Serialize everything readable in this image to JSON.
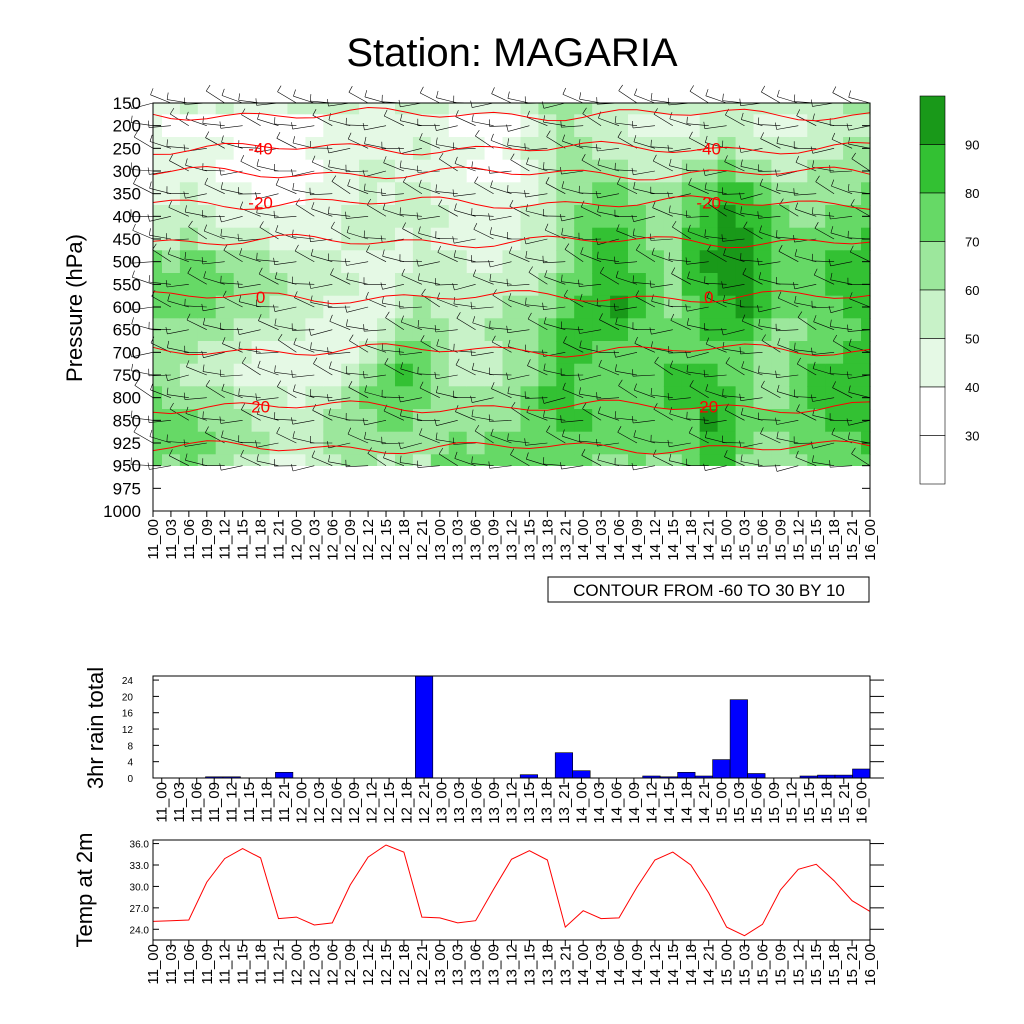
{
  "title": "Station: MAGARIA",
  "time_labels": [
    "11_00",
    "11_03",
    "11_06",
    "11_09",
    "11_12",
    "11_15",
    "11_18",
    "11_21",
    "12_00",
    "12_03",
    "12_06",
    "12_09",
    "12_12",
    "12_15",
    "12_18",
    "12_21",
    "13_00",
    "13_03",
    "13_06",
    "13_09",
    "13_12",
    "13_15",
    "13_18",
    "13_21",
    "14_00",
    "14_03",
    "14_06",
    "14_09",
    "14_12",
    "14_15",
    "14_18",
    "14_21",
    "15_00",
    "15_03",
    "15_06",
    "15_09",
    "15_12",
    "15_15",
    "15_18",
    "15_21",
    "16_00"
  ],
  "colors": {
    "rain_bar": "#0000ff",
    "temp_line": "#ff0000",
    "temp_contour": "#ff0000",
    "rh_levels": [
      "#ffffff",
      "#e5f9e5",
      "#c8f2c8",
      "#9ce79c",
      "#66d966",
      "#33c133",
      "#199919"
    ]
  },
  "chart_data": [
    {
      "type": "heatmap",
      "ylabel": "Pressure (hPa)",
      "y_ticks": [
        150,
        200,
        250,
        300,
        350,
        400,
        450,
        500,
        550,
        600,
        650,
        700,
        750,
        800,
        850,
        925,
        950,
        975,
        1000
      ],
      "y_reversed": true,
      "x_ticks_ref": "time_labels",
      "variable_shaded": "relative humidity",
      "colorbar_labels": [
        "30",
        "40",
        "50",
        "60",
        "70",
        "80",
        "90"
      ],
      "colorbar_bins": [
        20,
        30,
        40,
        50,
        60,
        70,
        80,
        90,
        100
      ],
      "rh_columns_levels": [
        150,
        200,
        250,
        300,
        350,
        400,
        450,
        500,
        550,
        600,
        650,
        700,
        750,
        800,
        850,
        925,
        950
      ],
      "rh_profiles": [
        [
          45,
          40,
          45,
          40,
          40,
          50,
          55,
          70,
          75,
          72,
          68,
          60,
          60,
          70,
          75,
          72,
          70
        ],
        [
          48,
          35,
          40,
          40,
          45,
          50,
          55,
          68,
          72,
          70,
          65,
          60,
          62,
          68,
          72,
          70,
          68
        ],
        [
          50,
          38,
          45,
          45,
          50,
          55,
          60,
          72,
          78,
          75,
          68,
          62,
          58,
          65,
          70,
          75,
          72
        ],
        [
          45,
          35,
          40,
          40,
          45,
          50,
          55,
          70,
          72,
          70,
          62,
          55,
          55,
          62,
          68,
          70,
          65
        ],
        [
          50,
          38,
          40,
          38,
          40,
          45,
          55,
          68,
          70,
          68,
          60,
          52,
          52,
          60,
          65,
          68,
          60
        ],
        [
          45,
          36,
          38,
          35,
          40,
          45,
          52,
          62,
          65,
          62,
          58,
          50,
          48,
          55,
          60,
          62,
          55
        ],
        [
          48,
          35,
          38,
          35,
          38,
          42,
          50,
          60,
          62,
          60,
          55,
          48,
          45,
          52,
          58,
          60,
          50
        ],
        [
          45,
          32,
          35,
          32,
          35,
          40,
          48,
          58,
          60,
          58,
          52,
          45,
          42,
          50,
          55,
          58,
          48
        ],
        [
          50,
          35,
          38,
          35,
          38,
          40,
          45,
          55,
          58,
          55,
          50,
          45,
          42,
          48,
          52,
          55,
          48
        ],
        [
          52,
          38,
          40,
          38,
          40,
          42,
          48,
          52,
          55,
          52,
          48,
          42,
          45,
          50,
          55,
          58,
          50
        ],
        [
          55,
          40,
          42,
          40,
          42,
          45,
          48,
          50,
          52,
          48,
          45,
          42,
          48,
          55,
          60,
          62,
          55
        ],
        [
          50,
          40,
          45,
          45,
          48,
          50,
          52,
          48,
          50,
          45,
          42,
          45,
          55,
          62,
          65,
          68,
          60
        ],
        [
          48,
          42,
          48,
          50,
          52,
          55,
          55,
          45,
          48,
          42,
          48,
          55,
          62,
          70,
          68,
          65,
          62
        ],
        [
          45,
          40,
          45,
          50,
          48,
          52,
          50,
          42,
          45,
          45,
          55,
          65,
          72,
          75,
          70,
          62,
          58
        ],
        [
          50,
          42,
          48,
          45,
          50,
          55,
          48,
          45,
          50,
          55,
          62,
          72,
          80,
          78,
          72,
          65,
          60
        ],
        [
          55,
          45,
          50,
          48,
          52,
          55,
          50,
          50,
          55,
          62,
          68,
          70,
          72,
          72,
          68,
          62,
          58
        ],
        [
          50,
          40,
          45,
          42,
          48,
          50,
          48,
          52,
          55,
          58,
          62,
          62,
          62,
          65,
          65,
          68,
          70
        ],
        [
          48,
          38,
          42,
          40,
          45,
          48,
          45,
          50,
          52,
          55,
          58,
          58,
          55,
          62,
          68,
          72,
          75
        ],
        [
          45,
          35,
          40,
          38,
          42,
          45,
          42,
          48,
          50,
          55,
          58,
          55,
          52,
          60,
          65,
          68,
          72
        ],
        [
          42,
          35,
          38,
          35,
          40,
          42,
          42,
          48,
          52,
          58,
          60,
          58,
          55,
          62,
          65,
          70,
          72
        ],
        [
          45,
          38,
          42,
          38,
          42,
          45,
          45,
          52,
          55,
          60,
          62,
          62,
          60,
          65,
          68,
          72,
          70
        ],
        [
          55,
          45,
          50,
          45,
          48,
          50,
          50,
          55,
          58,
          62,
          65,
          68,
          68,
          70,
          72,
          75,
          72
        ],
        [
          60,
          55,
          58,
          55,
          55,
          58,
          55,
          58,
          62,
          68,
          72,
          75,
          78,
          80,
          78,
          78,
          72
        ],
        [
          65,
          60,
          62,
          62,
          62,
          65,
          65,
          68,
          72,
          78,
          82,
          82,
          82,
          82,
          82,
          78,
          72
        ],
        [
          62,
          58,
          62,
          65,
          68,
          72,
          72,
          75,
          78,
          82,
          82,
          80,
          78,
          78,
          80,
          78,
          72
        ],
        [
          58,
          52,
          58,
          65,
          72,
          78,
          80,
          82,
          85,
          88,
          85,
          78,
          75,
          75,
          78,
          72,
          68
        ],
        [
          55,
          50,
          55,
          62,
          70,
          78,
          82,
          85,
          88,
          92,
          85,
          78,
          72,
          72,
          75,
          70,
          65
        ],
        [
          52,
          48,
          52,
          58,
          65,
          72,
          75,
          78,
          80,
          82,
          78,
          72,
          70,
          72,
          75,
          72,
          70
        ],
        [
          50,
          45,
          50,
          55,
          60,
          65,
          68,
          72,
          72,
          72,
          70,
          72,
          75,
          78,
          78,
          72,
          68
        ],
        [
          50,
          45,
          50,
          55,
          60,
          65,
          65,
          68,
          68,
          68,
          70,
          75,
          80,
          80,
          78,
          70,
          65
        ],
        [
          52,
          48,
          55,
          62,
          70,
          78,
          80,
          82,
          80,
          78,
          75,
          78,
          82,
          82,
          78,
          72,
          70
        ],
        [
          55,
          50,
          58,
          68,
          78,
          85,
          88,
          90,
          88,
          85,
          80,
          78,
          82,
          88,
          92,
          88,
          85
        ],
        [
          58,
          52,
          60,
          70,
          82,
          90,
          92,
          92,
          90,
          88,
          82,
          78,
          75,
          82,
          88,
          85,
          80
        ],
        [
          55,
          50,
          58,
          68,
          80,
          88,
          92,
          95,
          92,
          90,
          82,
          75,
          70,
          72,
          75,
          72,
          68
        ],
        [
          52,
          48,
          55,
          62,
          72,
          80,
          85,
          88,
          85,
          80,
          72,
          68,
          65,
          68,
          70,
          68,
          65
        ],
        [
          50,
          45,
          52,
          58,
          65,
          72,
          75,
          78,
          75,
          72,
          68,
          65,
          65,
          68,
          70,
          68,
          65
        ],
        [
          52,
          48,
          55,
          58,
          62,
          68,
          72,
          75,
          72,
          70,
          68,
          70,
          72,
          75,
          72,
          70,
          68
        ],
        [
          55,
          50,
          55,
          60,
          62,
          68,
          72,
          75,
          75,
          72,
          72,
          75,
          80,
          82,
          78,
          72,
          70
        ],
        [
          58,
          52,
          58,
          62,
          65,
          70,
          75,
          80,
          80,
          78,
          75,
          78,
          82,
          85,
          82,
          75,
          72
        ],
        [
          60,
          55,
          60,
          65,
          68,
          72,
          78,
          82,
          82,
          80,
          78,
          80,
          85,
          88,
          85,
          78,
          72
        ],
        [
          62,
          55,
          62,
          68,
          72,
          75,
          80,
          85,
          85,
          82,
          80,
          82,
          85,
          88,
          85,
          80,
          75
        ]
      ],
      "rh_contour_labels": [
        "30",
        "40",
        "50",
        "60",
        "70",
        "80",
        "90"
      ],
      "temperature_contours": {
        "from": -60,
        "to": 30,
        "step": 10,
        "labels": [
          "-40",
          "-20",
          "0",
          "20"
        ],
        "levels": [
          {
            "value": -50,
            "p": 175
          },
          {
            "value": -40,
            "p": 250
          },
          {
            "value": -30,
            "p": 305
          },
          {
            "value": -20,
            "p": 370
          },
          {
            "value": -10,
            "p": 455
          },
          {
            "value": 0,
            "p": 578
          },
          {
            "value": 10,
            "p": 695
          },
          {
            "value": 20,
            "p": 820
          },
          {
            "value": 30,
            "p": 930
          }
        ]
      },
      "footer": "CONTOUR FROM -60 TO 30 BY 10"
    },
    {
      "type": "bar",
      "ylabel": "3hr rain total",
      "ylim": [
        0,
        25
      ],
      "y_ticks": [
        0,
        4,
        8,
        12,
        16,
        20,
        24
      ],
      "categories_ref": "time_labels",
      "values": [
        0,
        0,
        0,
        0.3,
        0.3,
        0,
        0,
        1.4,
        0,
        0,
        0,
        0,
        0,
        0,
        0,
        25,
        0,
        0,
        0,
        0,
        0,
        0.8,
        0,
        6.2,
        1.8,
        0,
        0,
        0,
        0.5,
        0.3,
        1.4,
        0.5,
        4.5,
        19.2,
        1.1,
        0,
        0,
        0.5,
        0.7,
        0.7,
        2.2
      ]
    },
    {
      "type": "line",
      "ylabel": "Temp at 2m",
      "ylim": [
        22.5,
        36.5
      ],
      "y_ticks": [
        "24.0",
        "27.0",
        "30.0",
        "33.0",
        "36.0"
      ],
      "x_ref": "time_labels",
      "values": [
        25.1,
        25.2,
        25.3,
        30.6,
        33.9,
        35.3,
        34.0,
        25.5,
        25.7,
        24.6,
        24.9,
        30.2,
        34.1,
        35.8,
        34.8,
        25.7,
        25.6,
        24.9,
        25.2,
        29.6,
        33.8,
        35.0,
        33.7,
        24.3,
        26.6,
        25.5,
        25.6,
        29.9,
        33.7,
        34.8,
        33.0,
        29.1,
        24.3,
        23.1,
        24.7,
        29.5,
        32.4,
        33.1,
        30.8,
        28.0,
        26.5
      ]
    }
  ]
}
